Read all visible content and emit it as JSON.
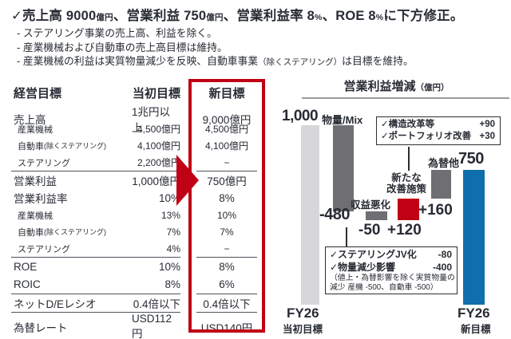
{
  "palette": {
    "red": "#c00014",
    "blue": "#0f6ead",
    "dark_gray": "#6e6e73",
    "light_gray": "#d7d7d9",
    "text": "#272b33",
    "rule": "#4d525c"
  },
  "header": {
    "check": "✓",
    "line1": {
      "p1": "売上高 9000",
      "u1": "億円",
      "p2": "、営業利益 750",
      "u2": "億円",
      "p3": "、営業利益率 8",
      "u3": "%",
      "p4": "、ROE 8",
      "u4": "%",
      "p5": "に下方修正。"
    },
    "bullets": {
      "b1": "- ステアリング事業の売上高、利益を除く。",
      "b2": "- 産業機械および自動車の売上高目標は維持。",
      "b3a": "- 産業機械の利益は実質物量減少を反映、自動車事業",
      "b3b": "（除くステアリング）",
      "b3c": "は目標を維持。"
    }
  },
  "table": {
    "headers": {
      "label": "経営目標",
      "initial": "当初目標",
      "new": "新目標"
    },
    "rows": [
      {
        "label": "売上高",
        "initial": "1兆円以上",
        "new": "9,000億円"
      },
      {
        "label": "産業機械",
        "initial": "4,500億円",
        "new": "4,500億円"
      },
      {
        "label": "自動車",
        "label_suffix": "(除くステアリング)",
        "initial": "4,100億円",
        "new": "4,100億円"
      },
      {
        "label": "ステアリング",
        "initial": "2,200億円",
        "new": "−"
      },
      {
        "label": "営業利益",
        "initial": "1,000億円",
        "new": "750億円"
      },
      {
        "label": "営業利益率",
        "initial": "10%",
        "new": "8%"
      },
      {
        "label": "産業機械",
        "initial": "13%",
        "new": "10%"
      },
      {
        "label": "自動車",
        "label_suffix": "(除くステアリング)",
        "initial": "7%",
        "new": "7%"
      },
      {
        "label": "ステアリング",
        "initial": "4%",
        "new": "−"
      },
      {
        "label": "ROE",
        "initial": "10%",
        "new": "8%"
      },
      {
        "label": "ROIC",
        "initial": "8%",
        "new": "6%"
      },
      {
        "label": "ネットD/Eレシオ",
        "initial": "0.4倍以下",
        "new": "0.4倍以下"
      },
      {
        "label": "為替レート",
        "initial": "USD112円",
        "new": "USD140円"
      }
    ]
  },
  "chart_data": {
    "type": "bar",
    "subtype": "waterfall",
    "title": "営業利益増減",
    "unit_label": "（億円）",
    "ylim": [
      0,
      1000
    ],
    "bars": [
      {
        "name": "FY26当初目標",
        "kind": "total",
        "value": 1000,
        "color": "light_gray",
        "label": "1,000"
      },
      {
        "name": "物量/Mix",
        "kind": "delta",
        "value": -480,
        "color": "dark_gray",
        "label": "-480"
      },
      {
        "name": "収益悪化",
        "kind": "delta",
        "value": -50,
        "color": "dark_gray",
        "label": "-50"
      },
      {
        "name": "新たな改善施策",
        "kind": "delta",
        "value": 120,
        "color": "red",
        "label": "+120"
      },
      {
        "name": "為替他",
        "kind": "delta",
        "value": 160,
        "color": "dark_gray",
        "label": "+160"
      },
      {
        "name": "FY26新目標",
        "kind": "total",
        "value": 750,
        "color": "blue",
        "label": "750"
      }
    ],
    "labels": {
      "start_value": "1,000",
      "volume_mix": "物量/Mix",
      "volume_delta": "-480",
      "decline_name": "収益悪化",
      "decline_delta": "-50",
      "measures_line1": "新たな",
      "measures_line2": "改善施策",
      "measures_delta": "+120",
      "fx_name": "為替他",
      "fx_delta": "+160",
      "end_value": "750",
      "axis_left_1": "FY26",
      "axis_left_2": "当初目標",
      "axis_right_1": "FY26",
      "axis_right_2": "新目標"
    },
    "callout_top": {
      "row1_text": "✓構造改革等",
      "row1_value": "+90",
      "row2_text": "✓ポートフォリオ改善",
      "row2_value": "+30"
    },
    "callout_bottom": {
      "row1_text": "✓ステアリングJV化",
      "row1_value": "-80",
      "row2_text": "✓物量減少影響",
      "row2_value": "-400",
      "note1": "（値上・為替影響を除く実質物量の",
      "note2": "減少 産機 -500、自動車 -500）"
    }
  }
}
